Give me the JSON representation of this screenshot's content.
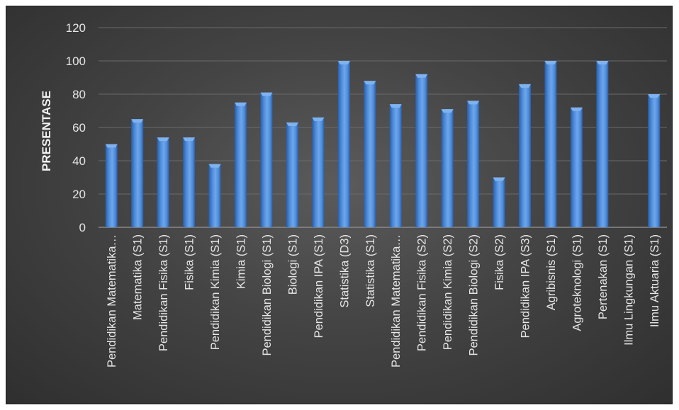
{
  "chart_data": {
    "type": "bar",
    "title": "",
    "xlabel": "",
    "ylabel": "PRESENTASE",
    "ylim": [
      0,
      120
    ],
    "yticks": [
      0,
      20,
      40,
      60,
      80,
      100,
      120
    ],
    "grid": true,
    "legend": "none",
    "colors": {
      "bar": "#4f8ddb",
      "bar_highlight": "#7fb2ee",
      "bar_shadow": "#2a5ea8",
      "grid": "#6a6a6a",
      "background": "#404040"
    },
    "categories": [
      "Pendidikan Matematika…",
      "Matematika (S1)",
      "Pendidikan Fisika (S1)",
      "Fisika (S1)",
      "Pendidikan Kimia (S1)",
      "Kimia (S1)",
      "Pendidikan Biologi (S1)",
      "Biologi (S1)",
      "Pendidikan IPA (S1)",
      "Statistika (D3)",
      "Statistika (S1)",
      "Pendidikan Matematika…",
      "Pendidikan Fisika (S2)",
      "Pendidikan Kimia (S2)",
      "Pendidikan Biologi (S2)",
      "Fisika (S2)",
      "Pendidikan IPA (S3)",
      "Agribisnis (S1)",
      "Agroteknologi (S1)",
      "Pertenakan (S1)",
      "Ilmu Lingkungan (S1)",
      "Ilmu Aktuaria (S1)"
    ],
    "values": [
      50,
      65,
      54,
      54,
      38,
      75,
      81,
      63,
      66,
      100,
      88,
      74,
      92,
      71,
      76,
      30,
      86,
      100,
      72,
      100,
      0,
      80
    ]
  }
}
